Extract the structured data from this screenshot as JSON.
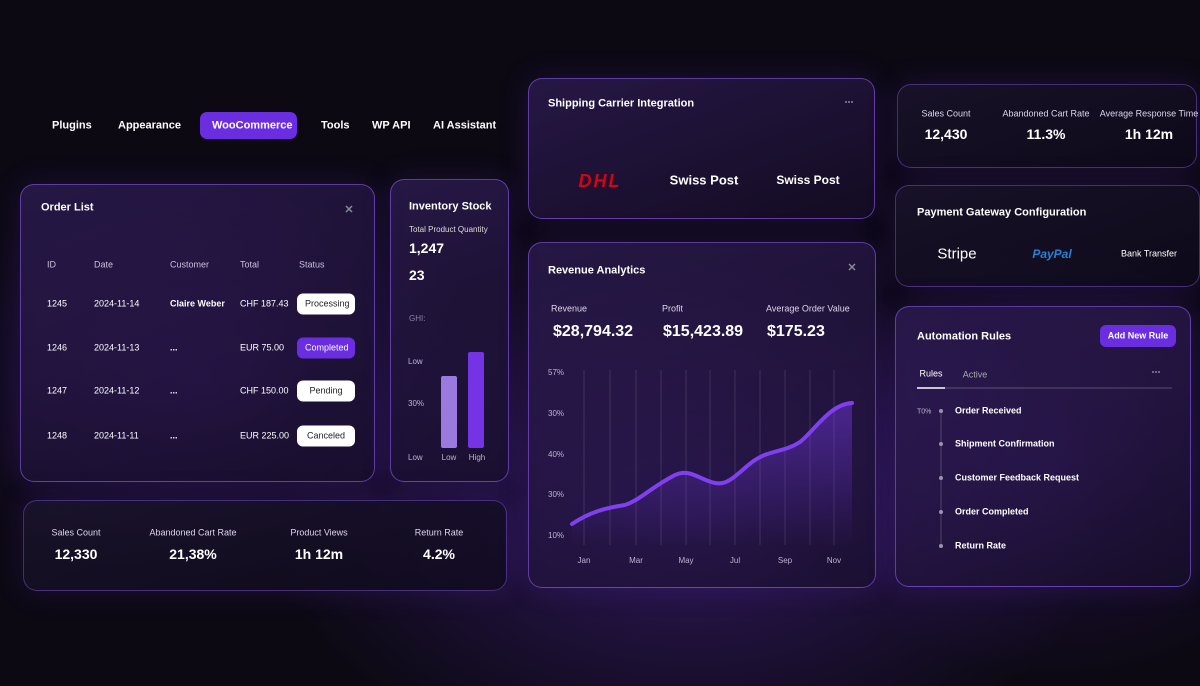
{
  "nav": [
    "Plugins",
    "Appearance",
    "WooCommerce",
    "Tools",
    "WP API",
    "AI Assistant"
  ],
  "order_list": {
    "title": "Order List",
    "columns": [
      "ID",
      "Date",
      "Customer",
      "Total",
      "Status"
    ],
    "rows": [
      [
        "1245",
        "2024-11-14",
        "Claire Weber",
        "CHF 187.43",
        "Processing"
      ],
      [
        "1246",
        "2024-11-13",
        "...",
        "EUR 75.00",
        "Completed"
      ],
      [
        "1247",
        "2024-11-12",
        "...",
        "CHF 150.00",
        "Pending"
      ],
      [
        "1248",
        "2024-11-11",
        "...",
        "EUR 225.00",
        "Canceled"
      ]
    ]
  },
  "inventory": {
    "title": "Inventory Stock",
    "subtitle": "Total Product Quantity",
    "quantity": "1,247",
    "count": "23",
    "label": "GHI:",
    "axis_labels": [
      "Low",
      "30%",
      "Low"
    ],
    "bar_labels": [
      "Low",
      "High"
    ]
  },
  "stats_left": [
    {
      "label": "Sales Count",
      "value": "12,330"
    },
    {
      "label": "Abandoned Cart Rate",
      "value": "21,38%"
    },
    {
      "label": "Product Views",
      "value": "1h 12m"
    },
    {
      "label": "Return Rate",
      "value": "4.2%"
    }
  ],
  "shipping": {
    "title": "Shipping Carrier Integration",
    "carriers": [
      "DHL",
      "Swiss Post",
      "Swiss Post"
    ]
  },
  "revenue": {
    "title": "Revenue Analytics",
    "metrics": [
      {
        "label": "Revenue",
        "value": "$28,794.32"
      },
      {
        "label": "Profit",
        "value": "$15,423.89"
      },
      {
        "label": "Average Order Value",
        "value": "$175.23"
      }
    ],
    "axis_labels": [
      "57%",
      "30%",
      "40%",
      "30%",
      "10%"
    ],
    "months": [
      "Jan",
      "Mar",
      "May",
      "Jul",
      "Sep",
      "Nov"
    ]
  },
  "stats_right": [
    {
      "label": "Sales Count",
      "value": "12,430"
    },
    {
      "label": "Abandoned Cart Rate",
      "value": "11.3%"
    },
    {
      "label": "Average Response Time",
      "value": "1h 12m"
    }
  ],
  "payment": {
    "title": "Payment Gateway Configuration",
    "gateways": [
      "Stripe",
      "PayPal",
      "Bank Transfer"
    ]
  },
  "automation": {
    "title": "Automation Rules",
    "button": "Add New Rule",
    "tabs": [
      "Rules",
      "Active"
    ],
    "marker": "T0%",
    "steps": [
      "Order Received",
      "Shipment Confirmation",
      "Customer Feedback Request",
      "Order Completed",
      "Return Rate"
    ]
  }
}
